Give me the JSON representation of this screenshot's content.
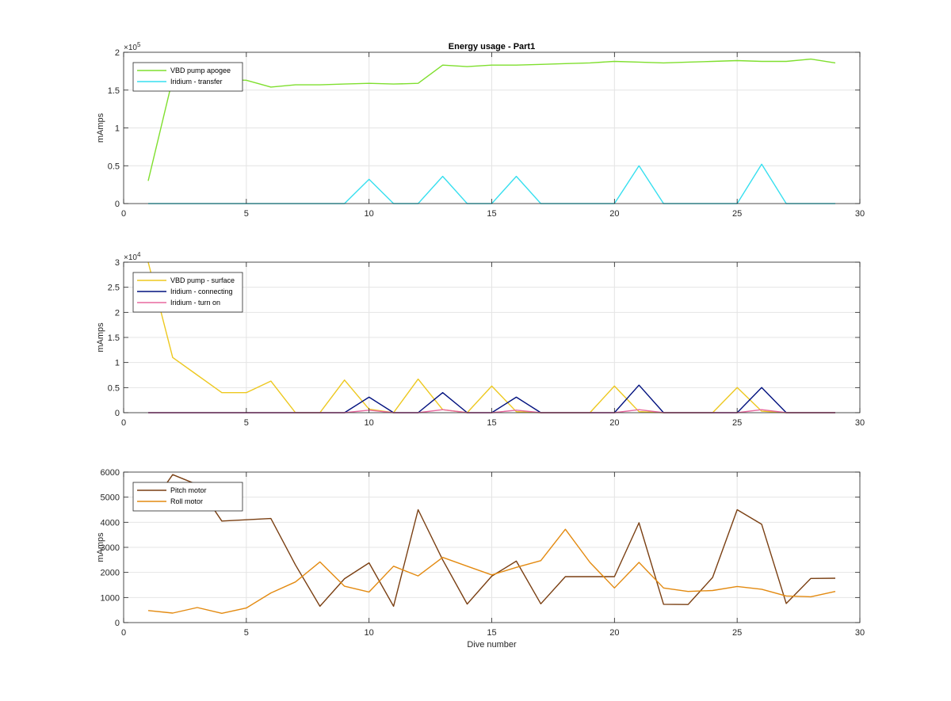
{
  "figure": {
    "title": "Energy usage - Part1"
  },
  "chart_data": [
    {
      "type": "line",
      "title": "Energy usage - Part1",
      "xlabel": "",
      "ylabel": "mAmps",
      "xlim": [
        0,
        30
      ],
      "ylim": [
        0,
        200000
      ],
      "x_ticks": [
        0,
        5,
        10,
        15,
        20,
        25,
        30
      ],
      "y_ticks": [
        0,
        50000,
        100000,
        150000,
        200000
      ],
      "y_tick_labels": [
        "0",
        "0.5",
        "1",
        "1.5",
        "2"
      ],
      "y_exponent": "5",
      "grid": true,
      "legend_position": "top-left",
      "x": [
        1,
        2,
        3,
        4,
        5,
        6,
        7,
        8,
        9,
        10,
        11,
        12,
        13,
        14,
        15,
        16,
        17,
        18,
        19,
        20,
        21,
        22,
        23,
        24,
        25,
        26,
        27,
        28,
        29
      ],
      "series": [
        {
          "name": "VBD pump apogee",
          "color": "#7fdf2e",
          "values": [
            30000,
            165000,
            167000,
            164000,
            163000,
            154000,
            157000,
            157000,
            158000,
            159000,
            158000,
            159000,
            183000,
            181000,
            183000,
            183000,
            184000,
            185000,
            186000,
            188000,
            187000,
            186000,
            187000,
            188000,
            189000,
            188000,
            188000,
            191000,
            186000
          ]
        },
        {
          "name": "Iridium - transfer",
          "color": "#37dfef",
          "values": [
            0,
            0,
            0,
            0,
            0,
            0,
            0,
            0,
            0,
            32000,
            0,
            0,
            36000,
            0,
            0,
            36000,
            0,
            0,
            0,
            0,
            50000,
            0,
            0,
            0,
            0,
            52000,
            0,
            0,
            0
          ]
        }
      ]
    },
    {
      "type": "line",
      "title": "",
      "xlabel": "",
      "ylabel": "mAmps",
      "xlim": [
        0,
        30
      ],
      "ylim": [
        0,
        30000
      ],
      "x_ticks": [
        0,
        5,
        10,
        15,
        20,
        25,
        30
      ],
      "y_ticks": [
        0,
        5000,
        10000,
        15000,
        20000,
        25000,
        30000
      ],
      "y_tick_labels": [
        "0",
        "0.5",
        "1",
        "1.5",
        "2",
        "2.5",
        "3"
      ],
      "y_exponent": "4",
      "grid": true,
      "legend_position": "top-left",
      "x": [
        1,
        2,
        3,
        4,
        5,
        6,
        7,
        8,
        9,
        10,
        11,
        12,
        13,
        14,
        15,
        16,
        17,
        18,
        19,
        20,
        21,
        22,
        23,
        24,
        25,
        26,
        27,
        28,
        29
      ],
      "series": [
        {
          "name": "VBD pump - surface",
          "color": "#edc81f",
          "values": [
            30000,
            11000,
            7500,
            4000,
            4000,
            6300,
            0,
            0,
            6500,
            700,
            0,
            6700,
            600,
            0,
            5300,
            200,
            0,
            0,
            0,
            5300,
            200,
            0,
            0,
            0,
            5000,
            300,
            0,
            0,
            0
          ]
        },
        {
          "name": "Iridium - connecting",
          "color": "#00107e",
          "values": [
            0,
            0,
            0,
            0,
            0,
            0,
            0,
            0,
            0,
            3100,
            0,
            0,
            4000,
            0,
            0,
            3100,
            0,
            0,
            0,
            0,
            5500,
            0,
            0,
            0,
            0,
            5000,
            0,
            0,
            0
          ]
        },
        {
          "name": "Iridium - turn on",
          "color": "#e8689f",
          "values": [
            0,
            0,
            0,
            0,
            0,
            0,
            0,
            0,
            0,
            500,
            0,
            0,
            600,
            0,
            0,
            500,
            0,
            0,
            0,
            0,
            600,
            0,
            0,
            0,
            0,
            600,
            0,
            0,
            0
          ]
        }
      ]
    },
    {
      "type": "line",
      "title": "",
      "xlabel": "Dive number",
      "ylabel": "mAmps",
      "xlim": [
        0,
        30
      ],
      "ylim": [
        0,
        6000
      ],
      "x_ticks": [
        0,
        5,
        10,
        15,
        20,
        25,
        30
      ],
      "y_ticks": [
        0,
        1000,
        2000,
        3000,
        4000,
        5000,
        6000
      ],
      "y_tick_labels": [
        "0",
        "1000",
        "2000",
        "3000",
        "4000",
        "5000",
        "6000"
      ],
      "y_exponent": "",
      "grid": true,
      "legend_position": "top-left",
      "x": [
        1,
        2,
        3,
        4,
        5,
        6,
        7,
        8,
        9,
        10,
        11,
        12,
        13,
        14,
        15,
        16,
        17,
        18,
        19,
        20,
        21,
        22,
        23,
        24,
        25,
        26,
        27,
        28,
        29
      ],
      "series": [
        {
          "name": "Pitch motor",
          "color": "#7a3f12",
          "values": [
            4500,
            5900,
            5500,
            4050,
            4100,
            4150,
            2300,
            650,
            1750,
            2380,
            650,
            4500,
            2500,
            740,
            1850,
            2450,
            750,
            1830,
            1830,
            1830,
            3980,
            730,
            720,
            1800,
            4500,
            3920,
            760,
            1760,
            1770
          ]
        },
        {
          "name": "Roll motor",
          "color": "#e38a10",
          "values": [
            480,
            380,
            600,
            370,
            580,
            1180,
            1620,
            2420,
            1450,
            1220,
            2250,
            1860,
            2600,
            2250,
            1900,
            2200,
            2470,
            3720,
            2400,
            1380,
            2400,
            1380,
            1240,
            1280,
            1440,
            1330,
            1060,
            1030,
            1240
          ]
        }
      ]
    }
  ]
}
